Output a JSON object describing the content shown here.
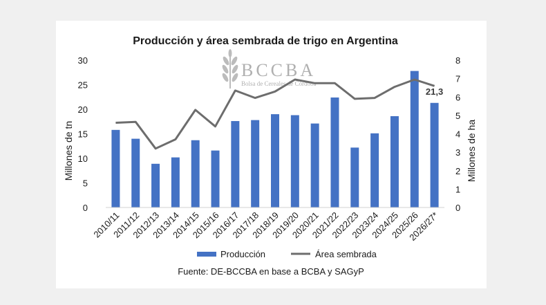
{
  "chart_data": {
    "type": "bar",
    "title": "Producción y área sembrada de trigo en Argentina",
    "categories": [
      "2010/11",
      "2011/12",
      "2012/13",
      "2013/14",
      "2014/15",
      "2015/16",
      "2016/17",
      "2017/18",
      "2018/19",
      "2019/20",
      "2020/21",
      "2021/22",
      "2022/23",
      "2023/24",
      "2024/25",
      "2025/26",
      "2026/27*"
    ],
    "series": [
      {
        "name": "Producción",
        "type": "bar",
        "axis": "left",
        "color": "#4472c4",
        "values": [
          15.8,
          14.0,
          8.9,
          10.2,
          13.7,
          11.6,
          17.6,
          17.8,
          19.0,
          18.8,
          17.1,
          22.4,
          12.2,
          15.1,
          18.6,
          27.8,
          21.3
        ]
      },
      {
        "name": "Área sembrada",
        "type": "line",
        "axis": "right",
        "color": "#6d6d6d",
        "values": [
          4.6,
          4.65,
          3.2,
          3.7,
          5.3,
          4.4,
          6.35,
          5.95,
          6.3,
          6.95,
          6.75,
          6.75,
          5.9,
          5.95,
          6.55,
          6.95,
          6.6
        ]
      }
    ],
    "ylabel": "Millones de tn",
    "y2label": "Millones de ha",
    "ylim": [
      0,
      30
    ],
    "y2lim": [
      0,
      8
    ],
    "yticks": [
      "0",
      "5",
      "10",
      "15",
      "20",
      "25",
      "30"
    ],
    "y2ticks": [
      "0",
      "1",
      "2",
      "3",
      "4",
      "5",
      "6",
      "7",
      "8"
    ],
    "data_label": "21,3",
    "grid": false,
    "legend_position": "bottom"
  },
  "watermark": {
    "name": "BCCBA",
    "subtitle": "Bolsa de Cereales de Córdoba"
  },
  "source": "Fuente: DE-BCCBA en base a BCBA y SAGyP"
}
